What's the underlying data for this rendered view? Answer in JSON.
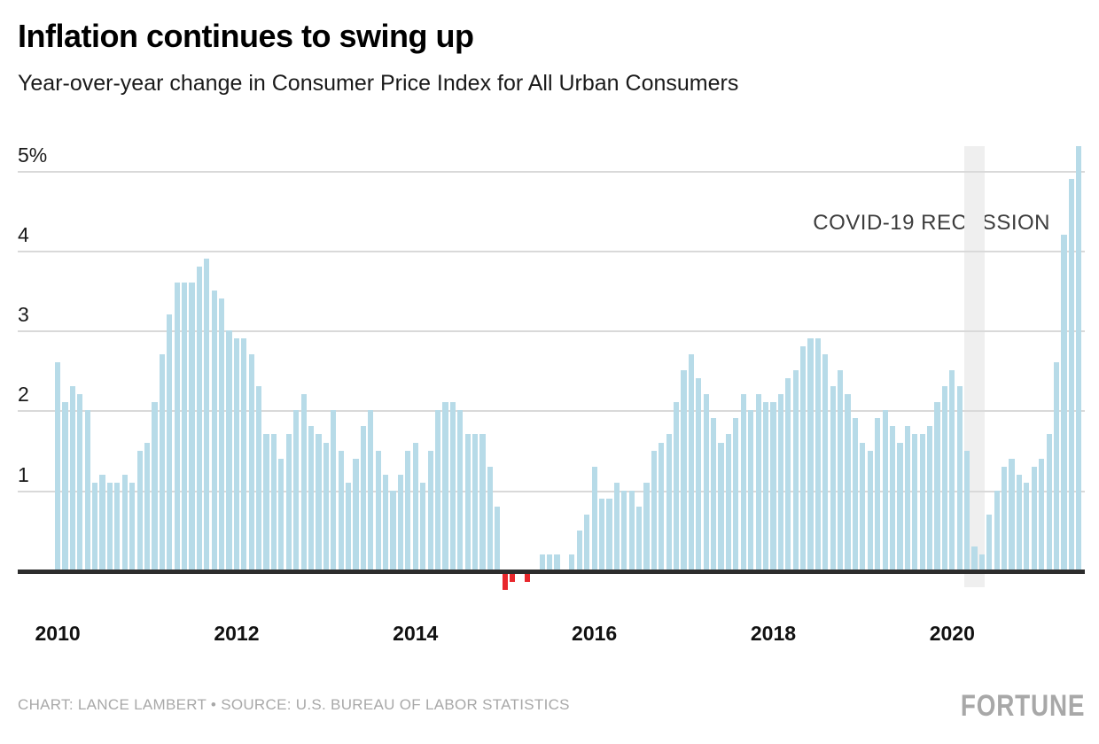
{
  "header": {
    "title": "Inflation continues to swing up",
    "subtitle": "Year-over-year change in Consumer Price Index for All Urban Consumers"
  },
  "footer": {
    "credit": "CHART: LANCE LAMBERT • SOURCE: U.S. BUREAU OF LABOR STATISTICS",
    "brand": "FORTUNE"
  },
  "chart_data": {
    "type": "bar",
    "title": "Inflation continues to swing up",
    "subtitle": "Year-over-year change in Consumer Price Index for All Urban Consumers",
    "unit": "%",
    "start_month": "2010-01",
    "end_month": "2021-06",
    "frequency": "monthly",
    "values": [
      2.6,
      2.1,
      2.3,
      2.2,
      2.0,
      1.1,
      1.2,
      1.1,
      1.1,
      1.2,
      1.1,
      1.5,
      1.6,
      2.1,
      2.7,
      3.2,
      3.6,
      3.6,
      3.6,
      3.8,
      3.9,
      3.5,
      3.4,
      3.0,
      2.9,
      2.9,
      2.7,
      2.3,
      1.7,
      1.7,
      1.4,
      1.7,
      2.0,
      2.2,
      1.8,
      1.7,
      1.6,
      2.0,
      1.5,
      1.1,
      1.4,
      1.8,
      2.0,
      1.5,
      1.2,
      1.0,
      1.2,
      1.5,
      1.6,
      1.1,
      1.5,
      2.0,
      2.1,
      2.1,
      2.0,
      1.7,
      1.7,
      1.7,
      1.3,
      0.8,
      -0.2,
      -0.1,
      0.0,
      -0.1,
      0.0,
      0.2,
      0.2,
      0.2,
      0.0,
      0.2,
      0.5,
      0.7,
      1.3,
      0.9,
      0.9,
      1.1,
      1.0,
      1.0,
      0.8,
      1.1,
      1.5,
      1.6,
      1.7,
      2.1,
      2.5,
      2.7,
      2.4,
      2.2,
      1.9,
      1.6,
      1.7,
      1.9,
      2.2,
      2.0,
      2.2,
      2.1,
      2.1,
      2.2,
      2.4,
      2.5,
      2.8,
      2.9,
      2.9,
      2.7,
      2.3,
      2.5,
      2.2,
      1.9,
      1.6,
      1.5,
      1.9,
      2.0,
      1.8,
      1.6,
      1.8,
      1.7,
      1.7,
      1.8,
      2.1,
      2.3,
      2.5,
      2.3,
      1.5,
      0.3,
      0.2,
      0.7,
      1.0,
      1.3,
      1.4,
      1.2,
      1.1,
      1.3,
      1.4,
      1.7,
      2.6,
      4.2,
      4.9,
      5.3
    ],
    "x_ticks": [
      {
        "label": "2010",
        "month_index": 0
      },
      {
        "label": "2012",
        "month_index": 24
      },
      {
        "label": "2014",
        "month_index": 48
      },
      {
        "label": "2016",
        "month_index": 72
      },
      {
        "label": "2018",
        "month_index": 96
      },
      {
        "label": "2020",
        "month_index": 120
      }
    ],
    "y_ticks": [
      {
        "label": "5%",
        "value": 5
      },
      {
        "label": "4",
        "value": 4
      },
      {
        "label": "3",
        "value": 3
      },
      {
        "label": "2",
        "value": 2
      },
      {
        "label": "1",
        "value": 1
      }
    ],
    "ylim": [
      -0.35,
      5.45
    ],
    "grid": "horizontal",
    "legend": "none",
    "annotations": {
      "recession_label": "COVID-19 RECESSION",
      "recession_span_months": [
        "2020-03",
        "2020-04"
      ]
    },
    "colors": {
      "positive_bar": "#b7dbe8",
      "negative_bar": "#e8272c",
      "recession_band": "#efefef",
      "gridline": "#d9d9d9",
      "baseline": "#2d2d2d"
    }
  }
}
